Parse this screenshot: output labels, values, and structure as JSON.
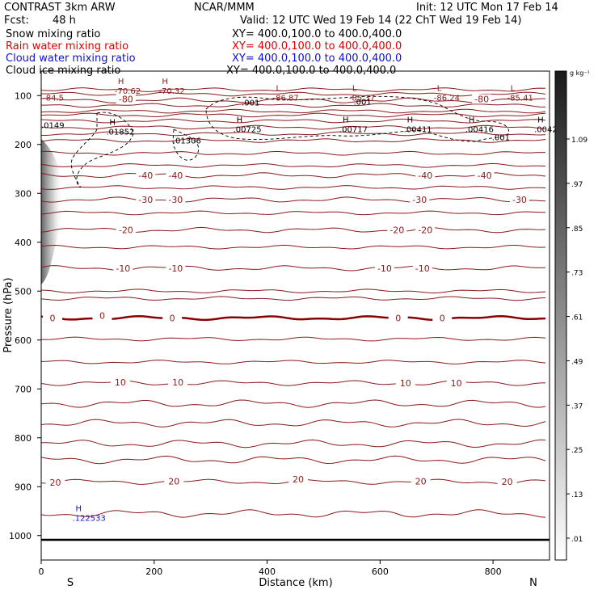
{
  "header": {
    "title": "CONTRAST   3km ARW",
    "center": "NCAR/MMM",
    "init": "Init: 12 UTC Mon 17 Feb 14",
    "fcst_label": "Fcst:",
    "fcst_value": "48 h",
    "valid": "Valid: 12 UTC Wed 19 Feb 14 (22 ChT Wed 19 Feb 14)",
    "fields": [
      {
        "name": "Snow mixing ratio",
        "xy": "XY= 400.0,100.0 to 400.0,400.0",
        "color": "#000000"
      },
      {
        "name": "Rain water mixing ratio",
        "xy": "XY= 400.0,100.0 to 400.0,400.0",
        "color": "#e00000"
      },
      {
        "name": "Cloud water mixing ratio",
        "xy": "XY= 400.0,100.0 to 400.0,400.0",
        "color": "#1010d0"
      },
      {
        "name": "Cloud ice mixing ratio",
        "xy": "XY= 400.0,100.0 to 400.0,400.0",
        "color": "#000000"
      }
    ]
  },
  "chart_data": {
    "type": "contour",
    "xlabel": "Distance (km)",
    "ylabel": "Pressure (hPa)",
    "xlim": [
      0,
      900
    ],
    "ylim": [
      1050,
      50
    ],
    "x_ticks": [
      0,
      200,
      400,
      600,
      800
    ],
    "y_ticks": [
      100,
      200,
      300,
      400,
      500,
      600,
      700,
      800,
      900,
      1000
    ],
    "end_labels": {
      "left": "S",
      "right": "N"
    },
    "colorbar": {
      "units": "g kg⁻¹",
      "ticks": [
        "1.09",
        ".97",
        ".85",
        ".73",
        ".61",
        ".49",
        ".37",
        ".25",
        ".13",
        ".01"
      ]
    },
    "colors": {
      "isotherm": "#8b1a1a",
      "freezing": "#8b0000",
      "surface": "#000000",
      "cloudwater": "#1010d0"
    },
    "isotherms": [
      {
        "p": 110,
        "label": "-80",
        "pos": [
          [
            150,
            107
          ],
          [
            780,
            107
          ]
        ]
      },
      {
        "p": 263,
        "label": "-40",
        "pos": [
          [
            185,
            263
          ],
          [
            238,
            263
          ],
          [
            680,
            263
          ],
          [
            785,
            263
          ]
        ]
      },
      {
        "p": 313,
        "label": "-30",
        "pos": [
          [
            185,
            313
          ],
          [
            238,
            313
          ],
          [
            670,
            313
          ],
          [
            847,
            313
          ]
        ]
      },
      {
        "p": 375,
        "label": "-20",
        "pos": [
          [
            150,
            375
          ],
          [
            630,
            375
          ],
          [
            680,
            375
          ]
        ]
      },
      {
        "p": 453,
        "label": "-10",
        "pos": [
          [
            145,
            453
          ],
          [
            238,
            453
          ],
          [
            608,
            453
          ],
          [
            675,
            453
          ]
        ]
      },
      {
        "p": 555,
        "label": "0",
        "pos": [
          [
            20,
            555
          ],
          [
            108,
            550
          ],
          [
            232,
            555
          ],
          [
            632,
            555
          ],
          [
            710,
            555
          ]
        ]
      },
      {
        "p": 688,
        "label": "10",
        "pos": [
          [
            140,
            686
          ],
          [
            242,
            686
          ],
          [
            645,
            688
          ],
          [
            735,
            688
          ]
        ]
      },
      {
        "p": 890,
        "label": "20",
        "pos": [
          [
            25,
            891
          ],
          [
            235,
            889
          ],
          [
            455,
            885
          ],
          [
            672,
            889
          ],
          [
            825,
            890
          ]
        ]
      }
    ],
    "extra_isotherms_p": [
      88,
      97,
      120,
      132,
      140,
      152,
      165,
      178,
      192,
      218,
      243,
      288,
      340,
      410,
      500,
      515,
      598,
      645,
      730,
      770,
      812,
      845,
      955
    ],
    "extrema_temp": [
      {
        "mark": "H",
        "value": "-70.62",
        "x": 130,
        "p": 86
      },
      {
        "mark": "H",
        "value": "-70.32",
        "x": 208,
        "p": 86
      },
      {
        "mark": "",
        "value": "-84.5",
        "x": 3,
        "p": 100
      },
      {
        "mark": "L",
        "value": "-86.87",
        "x": 410,
        "p": 100
      },
      {
        "mark": "L",
        "value": "-85.37",
        "x": 545,
        "p": 100
      },
      {
        "mark": "L",
        "value": "-86.24",
        "x": 695,
        "p": 100
      },
      {
        "mark": "L",
        "value": "-85.41",
        "x": 825,
        "p": 100
      }
    ],
    "snow_maxima": [
      {
        "mark": "",
        "value": ".0149",
        "x": 0,
        "p": 157
      },
      {
        "mark": "H",
        "value": ".01852",
        "x": 115,
        "p": 170
      },
      {
        "mark": "",
        "value": ".01306",
        "x": 233,
        "p": 188
      },
      {
        "mark": "H",
        "value": ".00725",
        "x": 340,
        "p": 165
      },
      {
        "mark": "H",
        "value": ".00717",
        "x": 528,
        "p": 165
      },
      {
        "mark": "H",
        "value": ".00411",
        "x": 642,
        "p": 165
      },
      {
        "mark": "H",
        "value": ".00416",
        "x": 751,
        "p": 165
      },
      {
        "mark": "H",
        "value": ".0042",
        "x": 873,
        "p": 165
      }
    ],
    "ice_labels": [
      {
        "value": ".001",
        "x": 355,
        "p": 114
      },
      {
        "value": ".001",
        "x": 553,
        "p": 112
      },
      {
        "value": ".001",
        "x": 798,
        "p": 185
      }
    ],
    "cloud_water_max": {
      "mark": "H",
      "value": ".122533",
      "x": 55,
      "p": 960
    },
    "surface_p": 1007
  }
}
